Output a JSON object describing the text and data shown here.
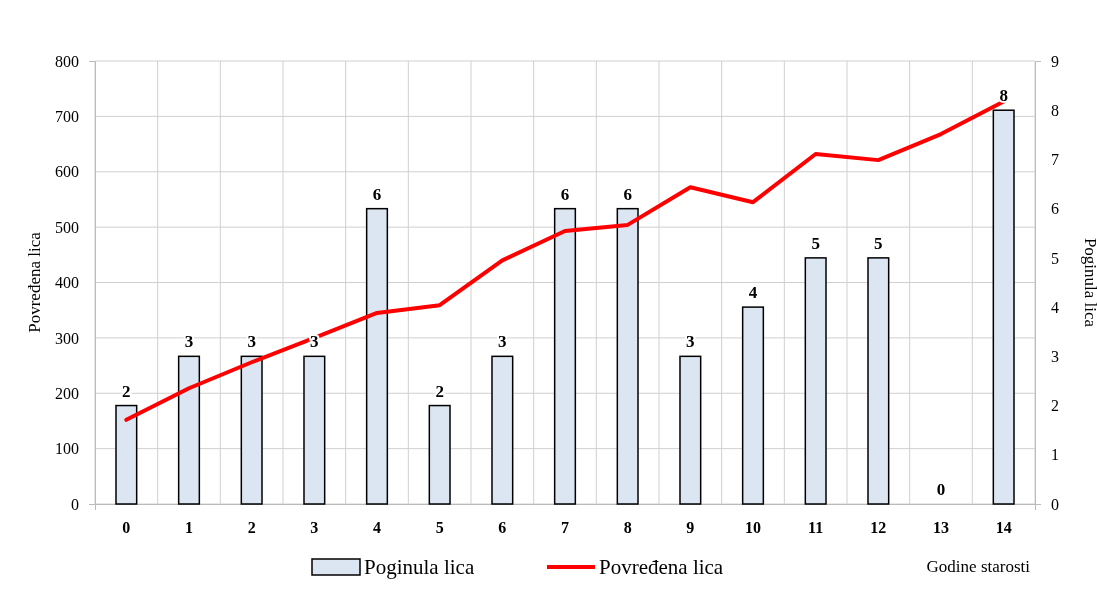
{
  "chart_data": {
    "type": "bar",
    "xlabel": "Godine starosti",
    "ylabel": "Povređena lica",
    "y2label": "Poginula lica",
    "categories": [
      "0",
      "1",
      "2",
      "3",
      "4",
      "5",
      "6",
      "7",
      "8",
      "9",
      "10",
      "11",
      "12",
      "13",
      "14"
    ],
    "series": [
      {
        "name": "Poginula lica",
        "axis": "y2",
        "color": "#dce6f2",
        "values": [
          2,
          3,
          3,
          3,
          6,
          2,
          3,
          6,
          6,
          3,
          4,
          5,
          5,
          0,
          8
        ]
      },
      {
        "name": "Povređena lica",
        "type": "line",
        "color": "#ff0000",
        "values": [
          152,
          209,
          256,
          300,
          345,
          359,
          440,
          493,
          504,
          572,
          545,
          632,
          621,
          668,
          727
        ]
      }
    ],
    "ylim": [
      0,
      800
    ],
    "yticks": [
      0,
      100,
      200,
      300,
      400,
      500,
      600,
      700,
      800
    ],
    "y2lim": [
      0,
      9
    ],
    "y2ticks": [
      0,
      1,
      2,
      3,
      4,
      5,
      6,
      7,
      8,
      9
    ],
    "data_labels": "y2",
    "grid": true,
    "legend": "bottom",
    "marker": "none",
    "line_style": "solid"
  }
}
